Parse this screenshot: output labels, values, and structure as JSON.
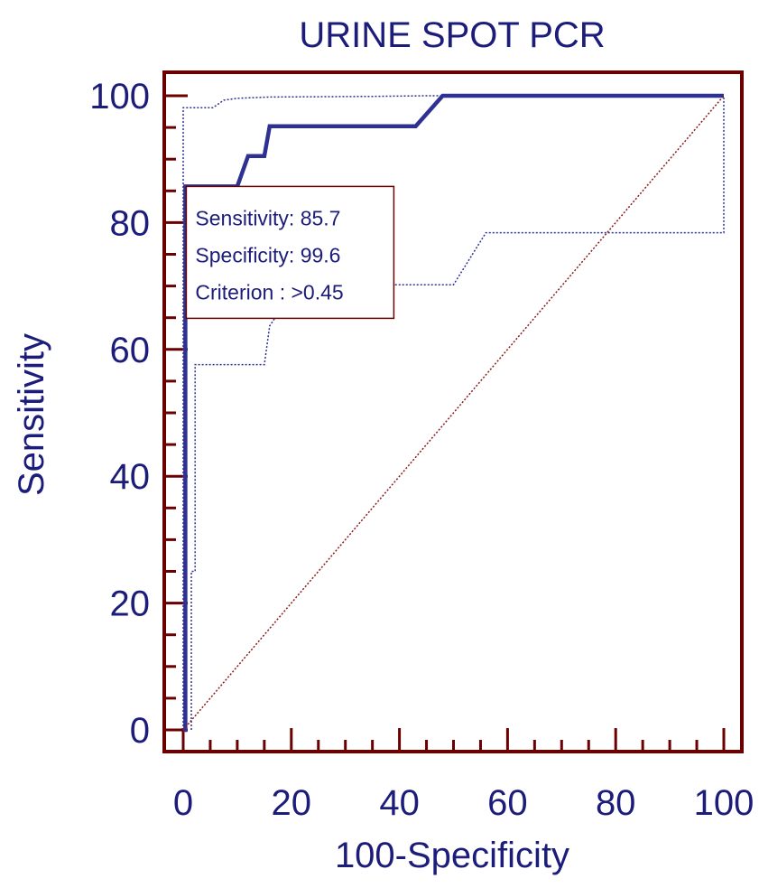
{
  "chart_data": {
    "type": "line",
    "title": "URINE  SPOT PCR",
    "xlabel": "100-Specificity",
    "ylabel": "Sensitivity",
    "xlim": [
      0,
      100
    ],
    "ylim": [
      0,
      100
    ],
    "xticks": [
      0,
      20,
      40,
      60,
      80,
      100
    ],
    "yticks": [
      0,
      20,
      40,
      60,
      80,
      100
    ],
    "grid": false,
    "legend": "none",
    "colors": {
      "frame": "#6b0000",
      "text": "#1c1c7a",
      "roc": "#2e3192",
      "ci": "#2e3192",
      "diagonal": "#8b1a1a"
    },
    "series": [
      {
        "style": "solid-thick",
        "x": [
          0,
          0.4,
          0.4,
          10,
          12,
          12,
          15,
          16,
          16,
          43,
          48,
          100
        ],
        "y": [
          0,
          0,
          85.7,
          85.7,
          90.5,
          90.5,
          90.5,
          95.2,
          95.2,
          95.2,
          100,
          100
        ]
      },
      {
        "style": "dotted",
        "x": [
          0,
          0,
          5.5,
          7.5,
          7.5,
          10,
          16,
          35,
          45,
          100,
          100
        ],
        "y": [
          0,
          98.1,
          98.1,
          99.3,
          99.3,
          99.6,
          99.8,
          99.9,
          100,
          100,
          100
        ]
      },
      {
        "style": "dotted",
        "x": [
          1.5,
          1.5,
          2.2,
          2.2,
          15,
          16,
          16,
          21,
          21,
          50,
          56,
          100,
          100
        ],
        "y": [
          0,
          25,
          25,
          57.6,
          57.6,
          63.7,
          63.7,
          70.2,
          70.2,
          70.2,
          78.4,
          78.4,
          100
        ]
      },
      {
        "style": "diagonal",
        "x": [
          0,
          100
        ],
        "y": [
          0,
          100
        ]
      }
    ],
    "annotation": {
      "lines": [
        "Sensitivity: 85.7",
        "Specificity: 99.6",
        "Criterion : >0.45"
      ],
      "anchor": [
        0.4,
        85.7
      ]
    }
  }
}
